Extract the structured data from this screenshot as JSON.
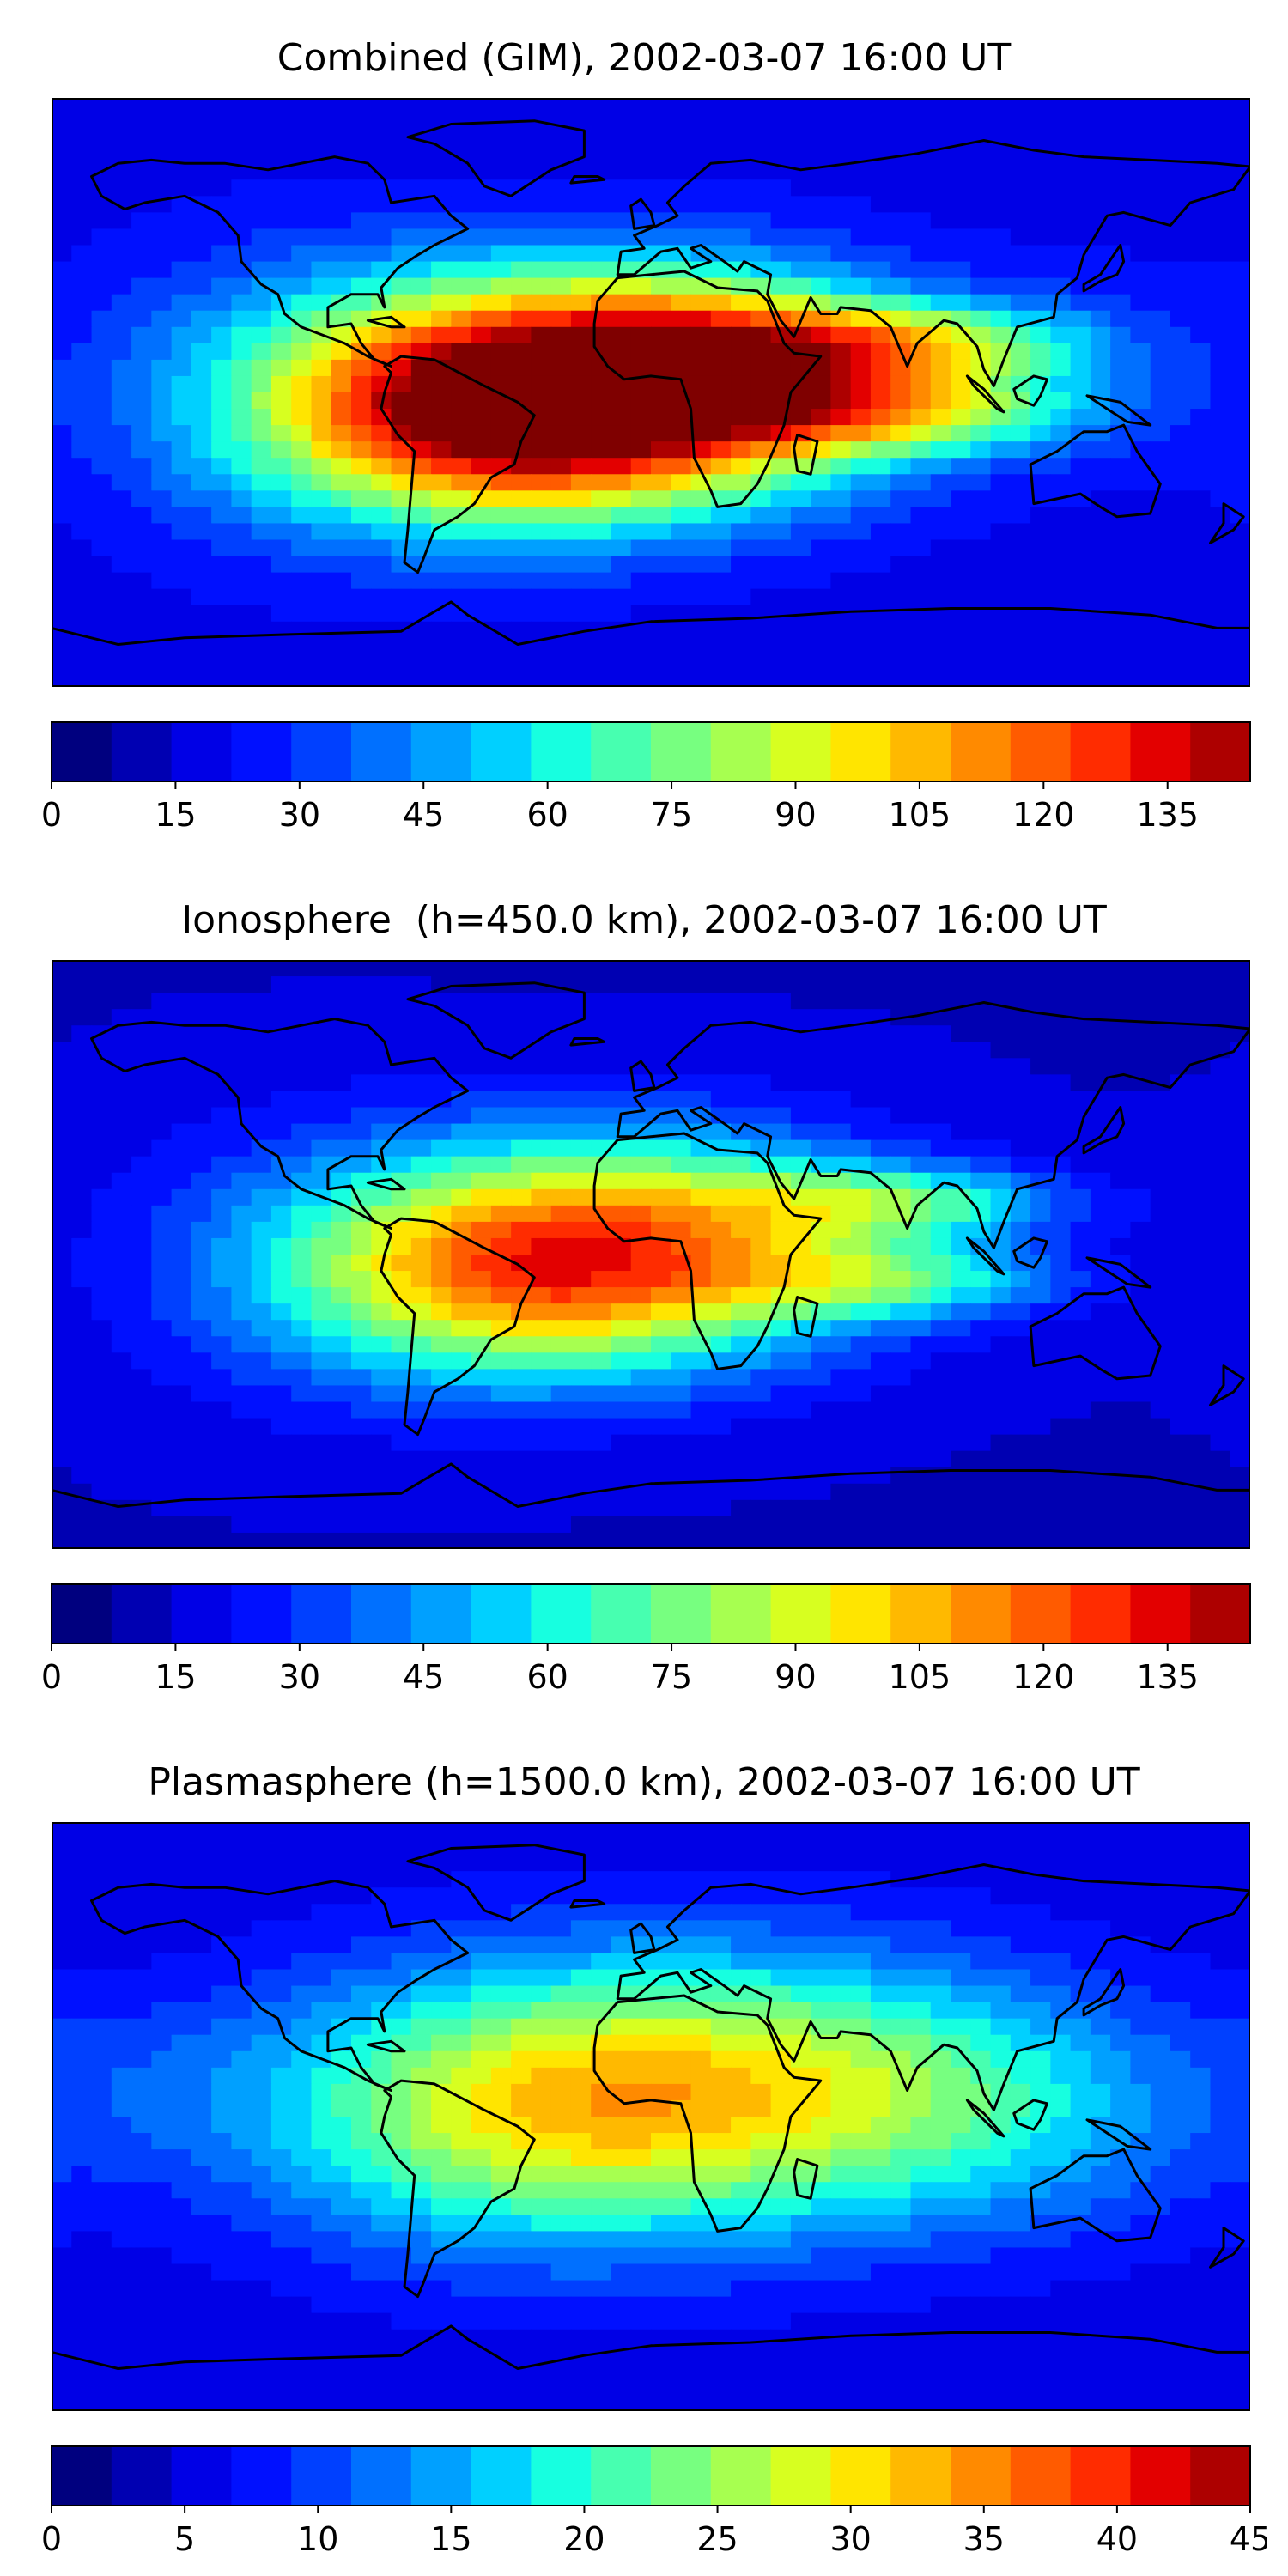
{
  "colormap": [
    "#00007f",
    "#0000b2",
    "#0000e6",
    "#0010ff",
    "#0040ff",
    "#0070ff",
    "#00a0ff",
    "#00d0ff",
    "#17ffe0",
    "#47ffb0",
    "#77ff80",
    "#a7ff50",
    "#d7ff20",
    "#ffe500",
    "#ffb900",
    "#ff8a00",
    "#ff5b00",
    "#ff2c00",
    "#e30000",
    "#ad0000",
    "#7f0000"
  ],
  "coastline_color": "#000000",
  "chart_data": [
    {
      "type": "heatmap",
      "title": "Combined (GIM), 2002-03-07 16:00 UT",
      "colorbar": {
        "vmin": 0,
        "vmax": 145,
        "step": 7.25,
        "ticks": [
          "0",
          "15",
          "30",
          "45",
          "60",
          "75",
          "90",
          "105",
          "120",
          "135"
        ],
        "tick_values": [
          0,
          15,
          30,
          45,
          60,
          75,
          90,
          105,
          120,
          135
        ]
      },
      "field": {
        "background": 18,
        "blobs": [
          {
            "lon": -50,
            "lat": -5,
            "value": 118,
            "slon": 48,
            "slat": 24
          },
          {
            "lon": 5,
            "lat": 2,
            "value": 120,
            "slon": 50,
            "slat": 24
          },
          {
            "lon": 20,
            "lat": 12,
            "value": 30,
            "slon": 25,
            "slat": 14
          },
          {
            "lon": 75,
            "lat": 15,
            "value": 78,
            "slon": 38,
            "slat": 9
          },
          {
            "lon": 75,
            "lat": -6,
            "value": 74,
            "slon": 38,
            "slat": 9
          },
          {
            "lon": -110,
            "lat": 0,
            "value": 38,
            "slon": 45,
            "slat": 32
          },
          {
            "lon": 130,
            "lat": 10,
            "value": 25,
            "slon": 25,
            "slat": 25
          },
          {
            "lon": -30,
            "lat": 35,
            "value": 20,
            "slon": 60,
            "slat": 18
          }
        ]
      }
    },
    {
      "type": "heatmap",
      "title": "Ionosphere  (h=450.0 km), 2002-03-07 16:00 UT",
      "colorbar": {
        "vmin": 0,
        "vmax": 145,
        "step": 7.25,
        "ticks": [
          "0",
          "15",
          "30",
          "45",
          "60",
          "75",
          "90",
          "105",
          "120",
          "135"
        ],
        "tick_values": [
          0,
          15,
          30,
          45,
          60,
          75,
          90,
          105,
          120,
          135
        ]
      },
      "field": {
        "background": 14,
        "blobs": [
          {
            "lon": -50,
            "lat": -5,
            "value": 82,
            "slon": 48,
            "slat": 24
          },
          {
            "lon": 5,
            "lat": 2,
            "value": 86,
            "slon": 50,
            "slat": 24
          },
          {
            "lon": 75,
            "lat": 16,
            "value": 58,
            "slon": 36,
            "slat": 8
          },
          {
            "lon": 75,
            "lat": -8,
            "value": 54,
            "slon": 36,
            "slat": 8
          },
          {
            "lon": -110,
            "lat": 0,
            "value": 26,
            "slon": 45,
            "slat": 32
          },
          {
            "lon": -30,
            "lat": 35,
            "value": 16,
            "slon": 60,
            "slat": 18
          }
        ]
      }
    },
    {
      "type": "heatmap",
      "title": "Plasmasphere (h=1500.0 km), 2002-03-07 16:00 UT",
      "colorbar": {
        "vmin": 0,
        "vmax": 45,
        "step": 2.25,
        "ticks": [
          "0",
          "5",
          "10",
          "15",
          "20",
          "25",
          "30",
          "35",
          "40",
          "45"
        ],
        "tick_values": [
          0,
          5,
          10,
          15,
          20,
          25,
          30,
          35,
          40,
          45
        ]
      },
      "field": {
        "background": 5,
        "blobs": [
          {
            "lon": -50,
            "lat": 2,
            "value": 22,
            "slon": 55,
            "slat": 30
          },
          {
            "lon": 30,
            "lat": 8,
            "value": 25,
            "slon": 60,
            "slat": 30
          },
          {
            "lon": 110,
            "lat": 5,
            "value": 12,
            "slon": 45,
            "slat": 25
          },
          {
            "lon": -150,
            "lat": 10,
            "value": 8,
            "slon": 30,
            "slat": 20
          },
          {
            "lon": 140,
            "lat": -25,
            "value": 6,
            "slon": 40,
            "slat": 20
          }
        ]
      }
    }
  ]
}
